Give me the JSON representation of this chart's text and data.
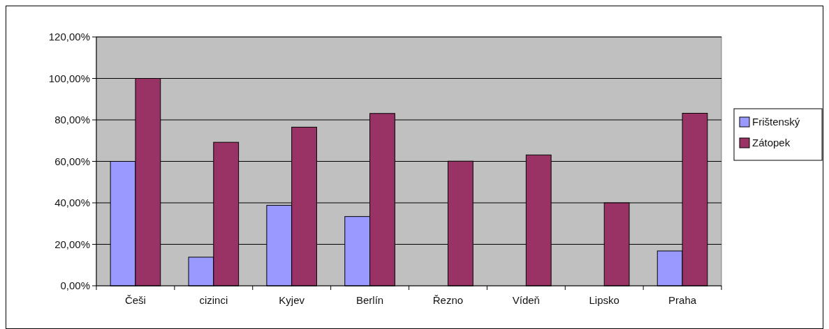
{
  "chart_data": {
    "type": "bar",
    "categories": [
      "Češi",
      "cizinci",
      "Kyjev",
      "Berlín",
      "Řezno",
      "Vídeň",
      "Lipsko",
      "Praha"
    ],
    "series": [
      {
        "name": "Frištenský",
        "color": "#9999ff",
        "values": [
          60,
          13.8,
          38.8,
          33.4,
          0,
          0,
          0,
          16.8
        ]
      },
      {
        "name": "Zátopek",
        "color": "#993366",
        "values": [
          100,
          69.2,
          76.5,
          83.1,
          60.1,
          63.1,
          40,
          83.2
        ]
      }
    ],
    "ylim": [
      0,
      120
    ],
    "yticks": [
      {
        "value": 0,
        "label": "0,00%"
      },
      {
        "value": 20,
        "label": "20,00%"
      },
      {
        "value": 40,
        "label": "40,00%"
      },
      {
        "value": 60,
        "label": "60,00%"
      },
      {
        "value": 80,
        "label": "80,00%"
      },
      {
        "value": 100,
        "label": "100,00%"
      },
      {
        "value": 120,
        "label": "120,00%"
      }
    ],
    "grid": "y",
    "legend": "right"
  }
}
